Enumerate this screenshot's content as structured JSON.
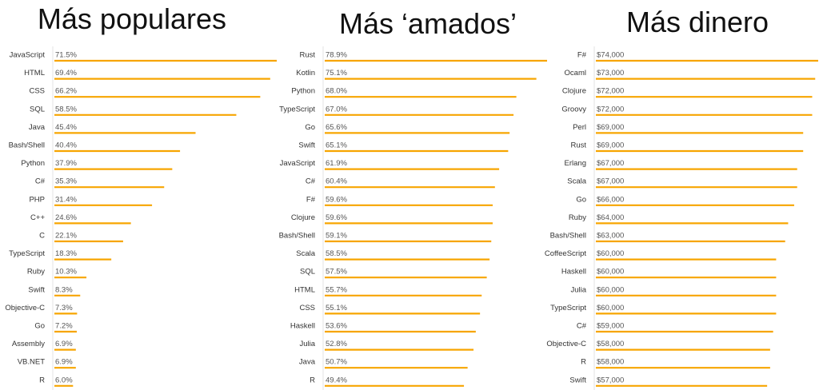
{
  "bar_color": "#f7a500",
  "chart_data": [
    {
      "type": "bar",
      "orientation": "horizontal",
      "title": "Más populares",
      "categories": [
        "JavaScript",
        "HTML",
        "CSS",
        "SQL",
        "Java",
        "Bash/Shell",
        "Python",
        "C#",
        "PHP",
        "C++",
        "C",
        "TypeScript",
        "Ruby",
        "Swift",
        "Objective-C",
        "Go",
        "Assembly",
        "VB.NET",
        "R"
      ],
      "values": [
        71.5,
        69.4,
        66.2,
        58.5,
        45.4,
        40.4,
        37.9,
        35.3,
        31.4,
        24.6,
        22.1,
        18.3,
        10.3,
        8.3,
        7.3,
        7.2,
        6.9,
        6.9,
        6.0
      ],
      "labels": [
        "71.5%",
        "69.4%",
        "66.2%",
        "58.5%",
        "45.4%",
        "40.4%",
        "37.9%",
        "35.3%",
        "31.4%",
        "24.6%",
        "22.1%",
        "18.3%",
        "10.3%",
        "8.3%",
        "7.3%",
        "7.2%",
        "6.9%",
        "6.9%",
        "6.0%"
      ],
      "xlim": [
        0,
        71.5
      ]
    },
    {
      "type": "bar",
      "orientation": "horizontal",
      "title": "Más ‘amados’",
      "categories": [
        "Rust",
        "Kotlin",
        "Python",
        "TypeScript",
        "Go",
        "Swift",
        "JavaScript",
        "C#",
        "F#",
        "Clojure",
        "Bash/Shell",
        "Scala",
        "SQL",
        "HTML",
        "CSS",
        "Haskell",
        "Julia",
        "Java",
        "R"
      ],
      "values": [
        78.9,
        75.1,
        68.0,
        67.0,
        65.6,
        65.1,
        61.9,
        60.4,
        59.6,
        59.6,
        59.1,
        58.5,
        57.5,
        55.7,
        55.1,
        53.6,
        52.8,
        50.7,
        49.4
      ],
      "labels": [
        "78.9%",
        "75.1%",
        "68.0%",
        "67.0%",
        "65.6%",
        "65.1%",
        "61.9%",
        "60.4%",
        "59.6%",
        "59.6%",
        "59.1%",
        "58.5%",
        "57.5%",
        "55.7%",
        "55.1%",
        "53.6%",
        "52.8%",
        "50.7%",
        "49.4%"
      ],
      "xlim": [
        0,
        78.9
      ]
    },
    {
      "type": "bar",
      "orientation": "horizontal",
      "title": "Más dinero",
      "categories": [
        "F#",
        "Ocaml",
        "Clojure",
        "Groovy",
        "Perl",
        "Rust",
        "Erlang",
        "Scala",
        "Go",
        "Ruby",
        "Bash/Shell",
        "CoffeeScript",
        "Haskell",
        "Julia",
        "TypeScript",
        "C#",
        "Objective-C",
        "R",
        "Swift"
      ],
      "values": [
        74000,
        73000,
        72000,
        72000,
        69000,
        69000,
        67000,
        67000,
        66000,
        64000,
        63000,
        60000,
        60000,
        60000,
        60000,
        59000,
        58000,
        58000,
        57000
      ],
      "labels": [
        "$74,000",
        "$73,000",
        "$72,000",
        "$72,000",
        "$69,000",
        "$69,000",
        "$67,000",
        "$67,000",
        "$66,000",
        "$64,000",
        "$63,000",
        "$60,000",
        "$60,000",
        "$60,000",
        "$60,000",
        "$59,000",
        "$58,000",
        "$58,000",
        "$57,000"
      ],
      "xlim": [
        0,
        74000
      ]
    }
  ]
}
